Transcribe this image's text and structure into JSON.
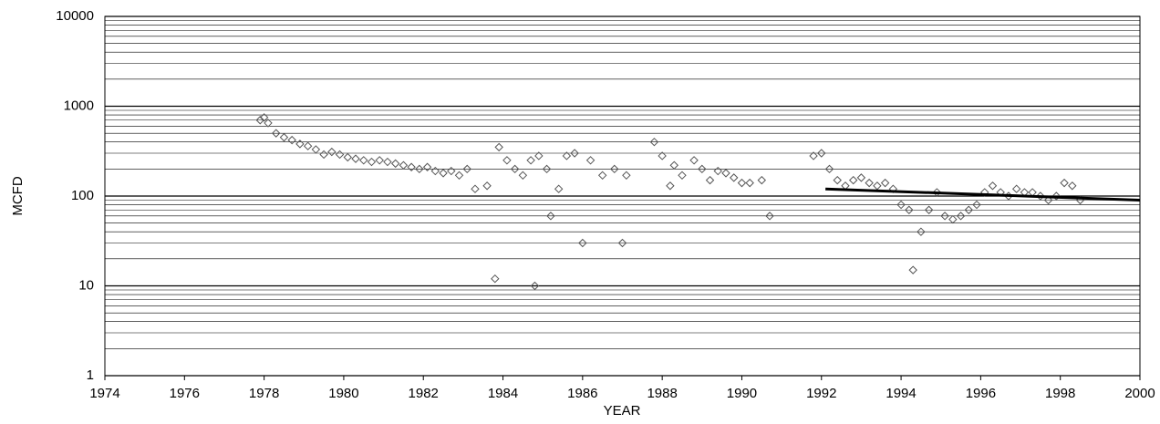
{
  "chart_data": {
    "type": "scatter",
    "x_label": "YEAR",
    "y_label": "MCFD",
    "xlim": [
      1974,
      2000
    ],
    "xticks": [
      1974,
      1976,
      1978,
      1980,
      1982,
      1984,
      1986,
      1988,
      1990,
      1992,
      1994,
      1996,
      1998,
      2000
    ],
    "ylim": [
      1,
      10000
    ],
    "yticks": [
      1,
      10,
      100,
      1000,
      10000
    ],
    "log_y": true,
    "grid": true,
    "series": [
      {
        "color": "#555555",
        "marker": "diamond",
        "x": [
          1977.9,
          1978.0,
          1978.1,
          1978.3,
          1978.5,
          1978.7,
          1978.9,
          1979.1,
          1979.3,
          1979.5,
          1979.7,
          1979.9,
          1980.1,
          1980.3,
          1980.5,
          1980.7,
          1980.9,
          1981.1,
          1981.3,
          1981.5,
          1981.7,
          1981.9,
          1982.1,
          1982.3,
          1982.5,
          1982.7,
          1982.9,
          1983.1,
          1983.3,
          1983.6,
          1983.8,
          1983.9,
          1984.1,
          1984.3,
          1984.5,
          1984.7,
          1984.8,
          1984.9,
          1985.1,
          1985.2,
          1985.4,
          1985.6,
          1985.8,
          1986.0,
          1986.2,
          1986.5,
          1986.8,
          1987.0,
          1987.1,
          1987.8,
          1988.0,
          1988.2,
          1988.3,
          1988.5,
          1988.8,
          1989.0,
          1989.2,
          1989.4,
          1989.6,
          1989.8,
          1990.0,
          1990.2,
          1990.5,
          1990.7,
          1991.8,
          1992.0,
          1992.2,
          1992.4,
          1992.6,
          1992.8,
          1993.0,
          1993.2,
          1993.4,
          1993.6,
          1993.8,
          1994.0,
          1994.2,
          1994.3,
          1994.5,
          1994.7,
          1994.9,
          1995.1,
          1995.3,
          1995.5,
          1995.7,
          1995.9,
          1996.1,
          1996.3,
          1996.5,
          1996.7,
          1996.9,
          1997.1,
          1997.3,
          1997.5,
          1997.7,
          1997.9,
          1998.1,
          1998.3,
          1998.5
        ],
        "values": [
          700,
          750,
          650,
          500,
          450,
          420,
          380,
          360,
          330,
          290,
          310,
          290,
          270,
          260,
          250,
          240,
          250,
          240,
          230,
          220,
          210,
          200,
          210,
          190,
          180,
          190,
          170,
          200,
          120,
          130,
          12,
          350,
          250,
          200,
          170,
          250,
          10,
          280,
          200,
          60,
          120,
          280,
          300,
          30,
          250,
          170,
          200,
          30,
          170,
          400,
          280,
          130,
          220,
          170,
          250,
          200,
          150,
          190,
          180,
          160,
          140,
          140,
          150,
          60,
          280,
          300,
          200,
          150,
          130,
          150,
          160,
          140,
          130,
          140,
          120,
          80,
          70,
          15,
          40,
          70,
          110,
          60,
          55,
          60,
          70,
          80,
          110,
          130,
          110,
          100,
          120,
          110,
          110,
          100,
          90,
          100,
          140,
          130,
          90
        ]
      },
      {
        "color": "#000000",
        "line": true,
        "x": [
          1992.1,
          2000
        ],
        "values": [
          120,
          90
        ]
      }
    ]
  }
}
